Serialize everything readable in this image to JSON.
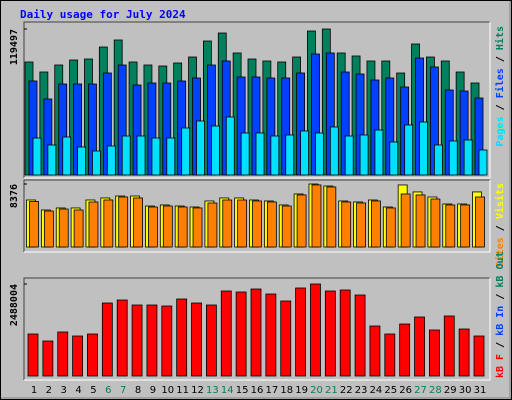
{
  "chart_data": [
    {
      "type": "bar",
      "title": "Daily usage for July 2024",
      "categories": [
        "1",
        "2",
        "3",
        "4",
        "5",
        "6",
        "7",
        "8",
        "9",
        "10",
        "11",
        "12",
        "13",
        "14",
        "15",
        "16",
        "17",
        "18",
        "19",
        "20",
        "21",
        "22",
        "23",
        "24",
        "25",
        "26",
        "27",
        "28",
        "29",
        "30",
        "31"
      ],
      "category_colors": [
        "#000000",
        "#000000",
        "#000000",
        "#000000",
        "#000000",
        "#00805c",
        "#00805c",
        "#000000",
        "#000000",
        "#000000",
        "#000000",
        "#000000",
        "#00805c",
        "#00805c",
        "#000000",
        "#000000",
        "#000000",
        "#000000",
        "#000000",
        "#00805c",
        "#00805c",
        "#000000",
        "#000000",
        "#000000",
        "#000000",
        "#000000",
        "#00805c",
        "#00805c",
        "#000000",
        "#000000",
        "#000000"
      ],
      "legend_separator": "/",
      "ylim": [
        0,
        119497
      ],
      "yticks": [
        119497
      ],
      "series": [
        {
          "name": "Hits",
          "color": "#00805c",
          "values": [
            92490,
            84300,
            90030,
            94120,
            94940,
            104760,
            110490,
            92490,
            90030,
            89210,
            91670,
            96580,
            109670,
            116220,
            99850,
            94940,
            93300,
            92490,
            96580,
            117860,
            119497,
            99850,
            97400,
            93300,
            93300,
            83480,
            107220,
            96580,
            93300,
            84300,
            75300
          ]
        },
        {
          "name": "Files",
          "color": "#0040ff",
          "values": [
            76940,
            62210,
            74480,
            74480,
            74480,
            83490,
            90030,
            73660,
            75300,
            75300,
            76940,
            79390,
            90030,
            93310,
            80210,
            80210,
            79390,
            79390,
            83490,
            99040,
            99860,
            84300,
            82670,
            77760,
            79390,
            72030,
            95760,
            88400,
            69570,
            68750,
            63020
          ]
        },
        {
          "name": "Pages",
          "color": "#00e0ff",
          "values": [
            30280,
            24550,
            31100,
            22920,
            19640,
            23740,
            31920,
            31920,
            30280,
            30280,
            38470,
            44200,
            40110,
            47470,
            34380,
            34380,
            31920,
            32740,
            36010,
            34380,
            39290,
            31920,
            32740,
            36830,
            27010,
            40930,
            43380,
            24550,
            27830,
            28650,
            20460
          ]
        }
      ]
    },
    {
      "type": "bar",
      "ylim": [
        0,
        8376
      ],
      "yticks": [
        8376
      ],
      "series": [
        {
          "name": "Visits",
          "color": "#ffff00",
          "values": [
            6250,
            4920,
            5190,
            5190,
            6250,
            6520,
            6780,
            6780,
            5450,
            5590,
            5450,
            5320,
            6120,
            6520,
            6520,
            6250,
            6120,
            5590,
            7050,
            8376,
            8110,
            6120,
            5990,
            6250,
            5320,
            8250,
            7320,
            6650,
            5720,
            5720,
            7320
          ]
        },
        {
          "name": "Sites",
          "color": "#ff8000",
          "values": [
            6050,
            4780,
            5050,
            4920,
            5980,
            6250,
            6650,
            6520,
            5320,
            5450,
            5320,
            5190,
            5850,
            6250,
            6250,
            6120,
            5990,
            5450,
            6920,
            8250,
            7980,
            5990,
            5850,
            6120,
            5190,
            7050,
            6920,
            6380,
            5590,
            5590,
            6650
          ]
        }
      ]
    },
    {
      "type": "bar",
      "ylim": [
        0,
        2488004
      ],
      "yticks": [
        2488004
      ],
      "series": [
        {
          "name": "kB F",
          "color": "#ff0000",
          "values": [
            1135800,
            946500,
            1189900,
            1081700,
            1135800,
            1974100,
            2055300,
            1920100,
            1920100,
            1893000,
            2082300,
            1974100,
            1920100,
            2298700,
            2271600,
            2352700,
            2217500,
            2028200,
            2379800,
            2488004,
            2298700,
            2325700,
            2190500,
            1352200,
            1135800,
            1406200,
            1595500,
            1244000,
            1622600,
            1271000,
            1081700
          ]
        }
      ],
      "legend_only": [
        {
          "name": "kB In",
          "color": "#0040ff"
        },
        {
          "name": "kB Out",
          "color": "#00805c"
        }
      ]
    }
  ]
}
